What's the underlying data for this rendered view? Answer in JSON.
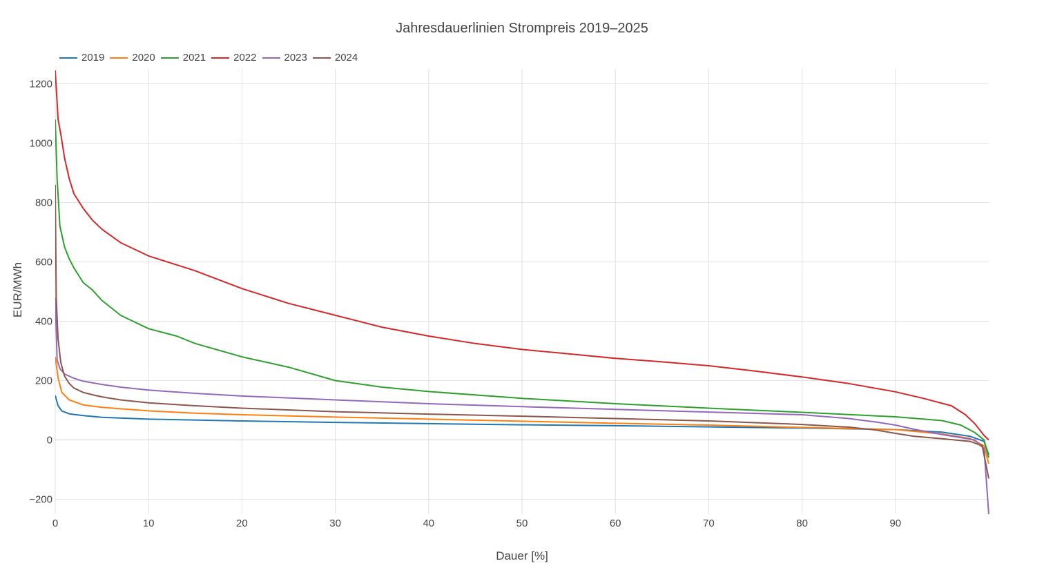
{
  "chart_data": {
    "type": "line",
    "title": "Jahresdauerlinien Strompreis 2019–2025",
    "xlabel": "Dauer [%]",
    "ylabel": "EUR/MWh",
    "xlim": [
      0,
      100
    ],
    "ylim": [
      -250,
      1250
    ],
    "xticks": [
      "0",
      "10",
      "20",
      "30",
      "40",
      "50",
      "60",
      "70",
      "80",
      "90"
    ],
    "yticks": [
      "−200",
      "0",
      "200",
      "400",
      "600",
      "800",
      "1000",
      "1200"
    ],
    "grid": true,
    "legend_position": "top-left",
    "series": [
      {
        "name": "2019",
        "color": "#1f77b4",
        "x": [
          0,
          0.3,
          0.7,
          1.5,
          3,
          5,
          10,
          20,
          30,
          40,
          50,
          60,
          70,
          80,
          90,
          95,
          98,
          99.5,
          100
        ],
        "y": [
          150,
          115,
          98,
          88,
          82,
          76,
          70,
          64,
          59,
          55,
          51,
          48,
          44,
          40,
          35,
          26,
          12,
          -5,
          -50
        ]
      },
      {
        "name": "2020",
        "color": "#ff7f0e",
        "x": [
          0,
          0.3,
          0.7,
          1.5,
          3,
          5,
          7,
          10,
          15,
          20,
          30,
          40,
          50,
          60,
          70,
          80,
          90,
          95,
          98,
          99.5,
          100
        ],
        "y": [
          280,
          210,
          160,
          135,
          118,
          110,
          105,
          98,
          90,
          85,
          77,
          70,
          63,
          56,
          50,
          42,
          35,
          20,
          5,
          -20,
          -80
        ]
      },
      {
        "name": "2021",
        "color": "#2ca02c",
        "x": [
          0,
          0.2,
          0.5,
          1,
          1.5,
          2,
          3,
          4,
          5,
          7,
          10,
          13,
          15,
          20,
          25,
          30,
          35,
          40,
          50,
          60,
          70,
          80,
          90,
          95,
          97,
          98.5,
          99.5,
          100
        ],
        "y": [
          1080,
          880,
          720,
          650,
          610,
          580,
          530,
          505,
          470,
          420,
          375,
          350,
          325,
          280,
          245,
          200,
          178,
          163,
          140,
          122,
          107,
          93,
          78,
          65,
          50,
          25,
          0,
          -60
        ]
      },
      {
        "name": "2022",
        "color": "#d62728",
        "x": [
          0,
          0.3,
          0.6,
          1,
          1.5,
          2,
          3,
          4,
          5,
          7,
          10,
          13,
          15,
          20,
          25,
          30,
          35,
          40,
          45,
          50,
          55,
          60,
          65,
          70,
          75,
          80,
          85,
          90,
          93,
          96,
          97.5,
          98.5,
          99.5,
          100
        ],
        "y": [
          1245,
          1080,
          1030,
          950,
          880,
          830,
          780,
          740,
          710,
          665,
          620,
          590,
          570,
          510,
          460,
          420,
          380,
          350,
          325,
          305,
          290,
          275,
          263,
          250,
          232,
          212,
          190,
          162,
          140,
          115,
          85,
          55,
          15,
          0
        ]
      },
      {
        "name": "2023",
        "color": "#9467bd",
        "x": [
          0,
          0.2,
          0.5,
          1,
          2,
          3,
          5,
          7,
          10,
          15,
          20,
          30,
          40,
          50,
          60,
          70,
          80,
          85,
          88,
          90,
          92,
          95,
          97,
          98.5,
          99.5,
          100
        ],
        "y": [
          480,
          270,
          240,
          222,
          208,
          198,
          187,
          178,
          168,
          157,
          148,
          135,
          122,
          112,
          103,
          94,
          85,
          72,
          60,
          50,
          36,
          18,
          8,
          0,
          -30,
          -250
        ]
      },
      {
        "name": "2024",
        "color": "#8c564b",
        "x": [
          0,
          0.1,
          0.3,
          0.6,
          1,
          1.5,
          2,
          3,
          4,
          5,
          7,
          10,
          15,
          20,
          30,
          40,
          50,
          60,
          70,
          80,
          85,
          88,
          90,
          92,
          95,
          98,
          99.3,
          100
        ],
        "y": [
          860,
          480,
          340,
          260,
          215,
          190,
          175,
          160,
          152,
          145,
          135,
          125,
          115,
          107,
          95,
          87,
          80,
          72,
          64,
          52,
          43,
          33,
          22,
          12,
          4,
          -5,
          -20,
          -130
        ]
      }
    ]
  }
}
